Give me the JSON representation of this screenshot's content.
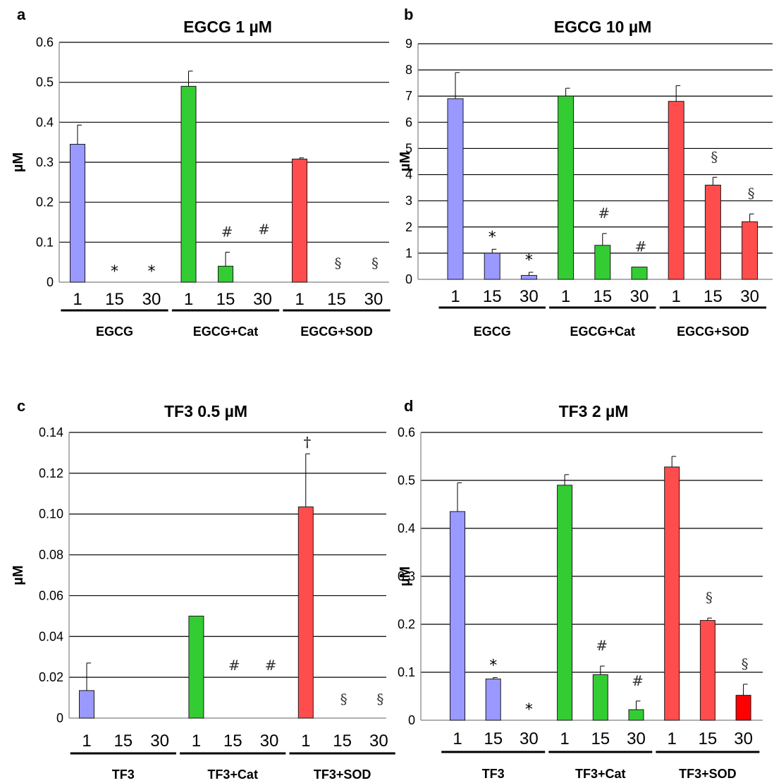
{
  "colors": {
    "grid": "#000000",
    "axis": "#808080",
    "bar_stroke": "#1a1a1a",
    "EGCG": "#9999ff",
    "Cat": "#33cc33",
    "SOD": "#ff4d4d",
    "SOD_dark": "#ff0000"
  },
  "chart_data": [
    {
      "type": "bar",
      "panel_label": "a",
      "title": "EGCG 1 µM",
      "ylabel": "µM",
      "ylim": [
        0,
        0.6
      ],
      "yticks": [
        "0",
        "0.1",
        "0.2",
        "0.3",
        "0.4",
        "0.5",
        "0.6"
      ],
      "groups": [
        "EGCG",
        "EGCG+Cat",
        "EGCG+SOD"
      ],
      "categories": [
        "1",
        "15",
        "30",
        "1",
        "15",
        "30",
        "1",
        "15",
        "30"
      ],
      "values": [
        0.345,
        0,
        0,
        0.49,
        0.04,
        0,
        0.308,
        0,
        0
      ],
      "errors": [
        0.048,
        0,
        0,
        0.038,
        0.035,
        0,
        0.003,
        0,
        0
      ],
      "markers": [
        "",
        "*",
        "*",
        "",
        "#",
        "#",
        "",
        "§",
        "§"
      ]
    },
    {
      "type": "bar",
      "panel_label": "b",
      "title": "EGCG 10 µM",
      "ylabel": "µM",
      "ylim": [
        0,
        9
      ],
      "yticks": [
        "0",
        "1",
        "2",
        "3",
        "4",
        "5",
        "6",
        "7",
        "8",
        "9"
      ],
      "groups": [
        "EGCG",
        "EGCG+Cat",
        "EGCG+SOD"
      ],
      "categories": [
        "1",
        "15",
        "30",
        "1",
        "15",
        "30",
        "1",
        "15",
        "30"
      ],
      "values": [
        6.9,
        1.0,
        0.15,
        7.0,
        1.3,
        0.47,
        6.8,
        3.6,
        2.2
      ],
      "errors": [
        1.0,
        0.15,
        0.12,
        0.3,
        0.45,
        0,
        0.6,
        0.3,
        0.3
      ],
      "markers": [
        "",
        "*",
        "*",
        "",
        "#",
        "#",
        "",
        "§",
        "§"
      ]
    },
    {
      "type": "bar",
      "panel_label": "c",
      "title": "TF3 0.5 µM",
      "ylabel": "µM",
      "ylim": [
        0,
        0.14
      ],
      "yticks": [
        "0",
        "0.02",
        "0.04",
        "0.06",
        "0.08",
        "0.10",
        "0.12",
        "0.14"
      ],
      "groups": [
        "TF3",
        "TF3+Cat",
        "TF3+SOD"
      ],
      "categories": [
        "1",
        "15",
        "30",
        "1",
        "15",
        "30",
        "1",
        "15",
        "30"
      ],
      "values": [
        0.0135,
        0,
        0,
        0.05,
        0,
        0,
        0.1035,
        0,
        0
      ],
      "errors": [
        0.0135,
        0,
        0,
        0,
        0,
        0,
        0.026,
        0,
        0
      ],
      "markers": [
        "",
        "",
        "",
        "",
        "#",
        "#",
        "†",
        "§",
        "§"
      ]
    },
    {
      "type": "bar",
      "panel_label": "d",
      "title": "TF3 2 µM",
      "ylabel": "µM",
      "ylim": [
        0,
        0.6
      ],
      "yticks": [
        "0",
        "0.1",
        "0.2",
        "0.3",
        "0.4",
        "0.5",
        "0.6"
      ],
      "groups": [
        "TF3",
        "TF3+Cat",
        "TF3+SOD"
      ],
      "categories": [
        "1",
        "15",
        "30",
        "1",
        "15",
        "30",
        "1",
        "15",
        "30"
      ],
      "values": [
        0.435,
        0.086,
        0,
        0.49,
        0.095,
        0.022,
        0.528,
        0.208,
        0.052
      ],
      "errors": [
        0.06,
        0.003,
        0,
        0.022,
        0.018,
        0.018,
        0.022,
        0.005,
        0.023
      ],
      "markers": [
        "",
        "*",
        "*",
        "",
        "#",
        "#",
        "",
        "§",
        "§"
      ]
    }
  ]
}
